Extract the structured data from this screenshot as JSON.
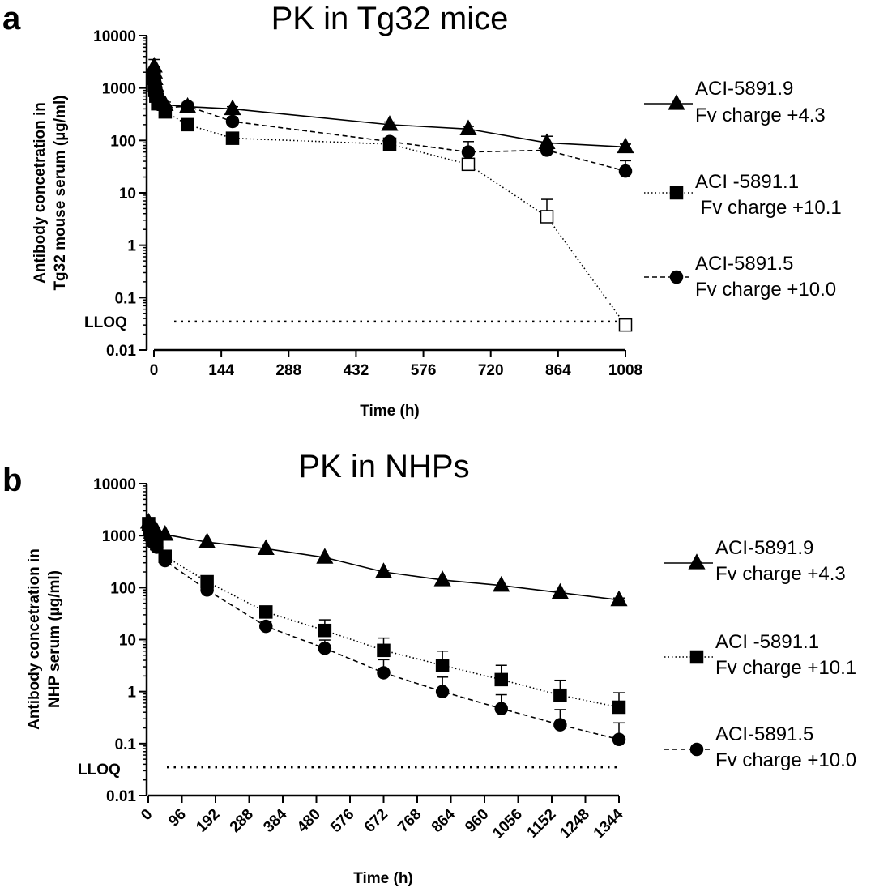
{
  "chart_data": [
    {
      "panel": "a",
      "type": "line",
      "title": "PK in Tg32 mice",
      "xlabel": "Time (h)",
      "ylabel": [
        "Antibody concetration in",
        "Tg32 mouse serum (µg/ml)"
      ],
      "yscale": "log",
      "ylim": [
        0.01,
        10000
      ],
      "xlim": [
        0,
        1008
      ],
      "xticks": [
        "0",
        "144",
        "288",
        "432",
        "576",
        "720",
        "864",
        "1008"
      ],
      "yticks": [
        "0.01",
        "0.1",
        "1",
        "10",
        "100",
        "1000",
        "10000"
      ],
      "lloq": {
        "label": "LLOQ",
        "value": 0.035
      },
      "legend_position": "right",
      "series": [
        {
          "name": "ACI-5891.9",
          "subtitle": "Fv charge +4.3",
          "marker": "triangle",
          "line": "solid",
          "x": [
            0.5,
            1,
            2,
            4,
            8,
            24,
            72,
            168,
            504,
            672,
            840,
            1008
          ],
          "y": [
            2600,
            2000,
            1500,
            1100,
            800,
            480,
            440,
            400,
            200,
            165,
            90,
            75
          ],
          "err": [
            900,
            500,
            300,
            150,
            100,
            60,
            50,
            40,
            25,
            20,
            30,
            10
          ]
        },
        {
          "name": "ACI -5891.1",
          "subtitle": " Fv charge +10.1",
          "marker": "square",
          "line": "dotted",
          "x": [
            0.5,
            1,
            2,
            4,
            8,
            24,
            72,
            168,
            504,
            672,
            840,
            1008
          ],
          "y": [
            1600,
            1200,
            900,
            700,
            500,
            350,
            200,
            110,
            85,
            35,
            3.5,
            0.03
          ],
          "open": [
            false,
            false,
            false,
            false,
            false,
            false,
            false,
            false,
            false,
            true,
            true,
            true
          ],
          "err": [
            300,
            200,
            150,
            100,
            80,
            60,
            40,
            15,
            10,
            8,
            4,
            0
          ]
        },
        {
          "name": "ACI-5891.5",
          "subtitle": "Fv charge +10.0",
          "marker": "circle",
          "line": "dashed",
          "x": [
            0.5,
            1,
            2,
            4,
            8,
            24,
            72,
            168,
            504,
            672,
            840,
            1008
          ],
          "y": [
            2000,
            1700,
            1300,
            1000,
            700,
            420,
            450,
            230,
            95,
            60,
            65,
            26
          ],
          "err": [
            400,
            300,
            200,
            150,
            100,
            60,
            80,
            40,
            15,
            35,
            20,
            15
          ]
        }
      ]
    },
    {
      "panel": "b",
      "type": "line",
      "title": "PK in NHPs",
      "xlabel": "Time (h)",
      "ylabel": [
        "Antibody concetration in",
        "NHP serum (µg/ml)"
      ],
      "yscale": "log",
      "ylim": [
        0.01,
        10000
      ],
      "xlim": [
        0,
        1344
      ],
      "xticks": [
        "0",
        "96",
        "192",
        "288",
        "384",
        "480",
        "576",
        "672",
        "768",
        "864",
        "960",
        "1056",
        "1152",
        "1248",
        "1344"
      ],
      "yticks": [
        "0.01",
        "0.1",
        "1",
        "10",
        "100",
        "1000",
        "10000"
      ],
      "lloq": {
        "label": "LLOQ",
        "value": 0.035
      },
      "legend_position": "right",
      "series": [
        {
          "name": "ACI-5891.9",
          "subtitle": "Fv charge +4.3",
          "marker": "triangle",
          "line": "solid",
          "x": [
            1,
            4,
            8,
            12,
            24,
            48,
            168,
            336,
            504,
            672,
            840,
            1008,
            1176,
            1344
          ],
          "y": [
            1800,
            1600,
            1400,
            1300,
            1200,
            1050,
            750,
            560,
            380,
            200,
            140,
            110,
            80,
            58
          ],
          "err": [
            150,
            120,
            100,
            100,
            80,
            60,
            40,
            30,
            25,
            15,
            10,
            8,
            6,
            5
          ]
        },
        {
          "name": "ACI -5891.1",
          "subtitle": "Fv charge +10.1",
          "marker": "square",
          "line": "dotted",
          "x": [
            1,
            4,
            8,
            12,
            24,
            48,
            168,
            336,
            504,
            672,
            840,
            1008,
            1176,
            1344
          ],
          "y": [
            1700,
            1400,
            1100,
            900,
            700,
            400,
            130,
            34,
            15,
            6.2,
            3.2,
            1.7,
            0.85,
            0.5
          ],
          "err": [
            150,
            120,
            100,
            80,
            60,
            40,
            20,
            8,
            9,
            4.5,
            2.8,
            1.5,
            0.8,
            0.45
          ]
        },
        {
          "name": "ACI-5891.5",
          "subtitle": "Fv charge +10.0",
          "marker": "circle",
          "line": "dashed",
          "x": [
            1,
            4,
            8,
            12,
            24,
            48,
            168,
            336,
            504,
            672,
            840,
            1008,
            1176,
            1344
          ],
          "y": [
            1400,
            1100,
            900,
            750,
            600,
            330,
            90,
            18,
            6.8,
            2.3,
            1.0,
            0.47,
            0.23,
            0.12
          ],
          "err": [
            150,
            120,
            100,
            80,
            60,
            30,
            15,
            4,
            3,
            1.8,
            0.9,
            0.4,
            0.22,
            0.13
          ]
        }
      ]
    }
  ]
}
